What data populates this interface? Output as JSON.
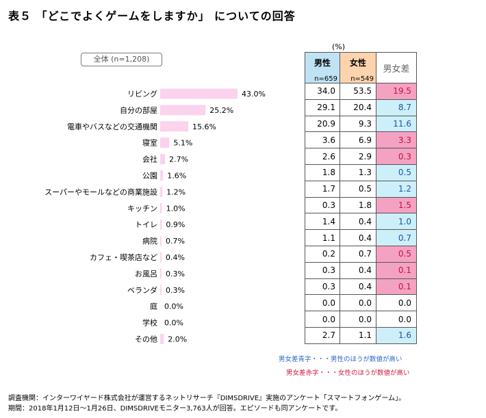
{
  "title": "表５ 「どこでよくゲームをしますか」 についての回答",
  "total_label": "全体 (n=1,208)",
  "unit_label": "(%)",
  "table_headers": {
    "male": "男性",
    "male_n": "n=659",
    "female": "女性",
    "female_n": "n=549",
    "diff": "男女差"
  },
  "chart_data": {
    "type": "bar",
    "orientation": "horizontal",
    "categories": [
      "リビング",
      "自分の部屋",
      "電車やバスなどの交通機関",
      "寝室",
      "会社",
      "公園",
      "スーパーやモールなどの商業施設",
      "キッチン",
      "トイレ",
      "病院",
      "カフェ・喫茶店など",
      "お風呂",
      "ベランダ",
      "庭",
      "学校",
      "その他"
    ],
    "values": [
      43.0,
      25.2,
      15.6,
      5.1,
      2.7,
      1.6,
      1.2,
      1.0,
      0.9,
      0.7,
      0.4,
      0.3,
      0.3,
      0.0,
      0.0,
      2.0
    ],
    "value_labels": [
      "43.0%",
      "25.2%",
      "15.6%",
      "5.1%",
      "2.7%",
      "1.6%",
      "1.2%",
      "1.0%",
      "0.9%",
      "0.7%",
      "0.4%",
      "0.3%",
      "0.3%",
      "0.0%",
      "0.0%",
      "2.0%"
    ],
    "bar_color": "#fbd3ee",
    "table": {
      "male": [
        "34.0",
        "29.1",
        "20.9",
        "3.6",
        "2.6",
        "1.8",
        "1.7",
        "0.3",
        "1.4",
        "1.1",
        "0.2",
        "0.3",
        "0.3",
        "0.0",
        "0.0",
        "2.7"
      ],
      "female": [
        "53.5",
        "20.4",
        "9.3",
        "6.9",
        "2.9",
        "1.3",
        "0.5",
        "1.8",
        "0.4",
        "0.4",
        "0.7",
        "0.4",
        "0.4",
        "0.0",
        "0.0",
        "1.1"
      ],
      "diff": [
        "19.5",
        "8.7",
        "11.6",
        "3.3",
        "0.3",
        "0.5",
        "1.2",
        "1.5",
        "1.0",
        "0.7",
        "0.5",
        "0.1",
        "0.1",
        "0.0",
        "0.0",
        "1.6"
      ],
      "diff_color": [
        "pink",
        "blue",
        "blue",
        "pink",
        "pink",
        "blue",
        "blue",
        "pink",
        "blue",
        "blue",
        "pink",
        "pink",
        "pink",
        "none",
        "none",
        "blue"
      ]
    }
  },
  "legend": {
    "blue": "男女差青字・・・男性のほうが数値が高い",
    "red": "男女差赤字・・・女性のほうが数値が高い",
    "blue_color": "#2b67c7",
    "red_color": "#d11a3a"
  },
  "footnote": {
    "line1": "調査機関：インターワイヤード株式会社が運営するネットリサーチ『DIMSDRIVE』実施のアンケート「スマートフォンゲーム」。",
    "line2": "期間：2018年1月12日～1月26日、DIMSDRIVEモニター3,763人が回答。エピソードも同アンケートです。"
  }
}
